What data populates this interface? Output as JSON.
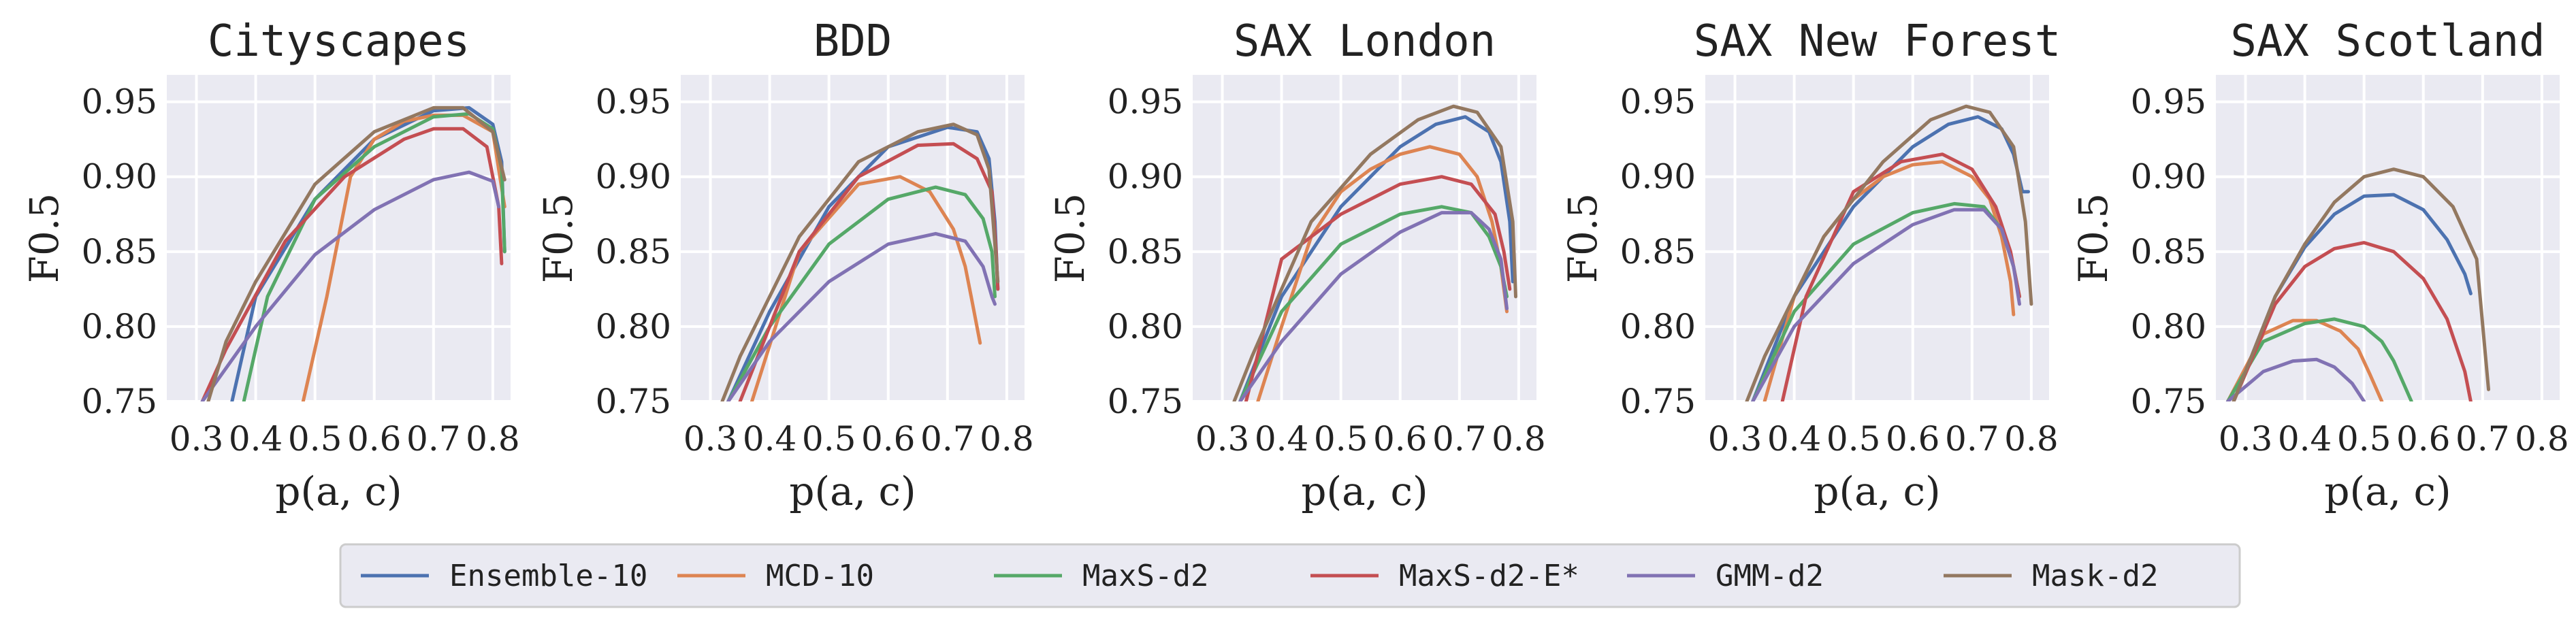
{
  "colors": {
    "plot_bg": "#EAEAF2",
    "grid": "#FFFFFF",
    "Ensemble-10": "#4C72B0",
    "MCD-10": "#DD8452",
    "MaxS-d2": "#55A868",
    "MaxS-d2-E*": "#C44E52",
    "GMM-d2": "#8172B3",
    "Mask-d2": "#937860"
  },
  "legend": {
    "placement": "bottom-center",
    "entries": [
      "Ensemble-10",
      "MCD-10",
      "MaxS-d2",
      "MaxS-d2-E*",
      "GMM-d2",
      "Mask-d2"
    ]
  },
  "chart_data": [
    {
      "type": "line",
      "title": "Cityscapes",
      "xlabel": "p(a, c)",
      "ylabel": "F0.5",
      "xlim": [
        0.25,
        0.83
      ],
      "ylim": [
        0.75,
        0.968
      ],
      "xticks": [
        "0.3",
        "0.4",
        "0.5",
        "0.6",
        "0.7",
        "0.8"
      ],
      "yticks": [
        "0.75",
        "0.80",
        "0.85",
        "0.90",
        "0.95"
      ],
      "grid": true,
      "series": [
        {
          "name": "Ensemble-10",
          "x": [
            0.36,
            0.4,
            0.5,
            0.6,
            0.7,
            0.76,
            0.8,
            0.815,
            0.82
          ],
          "y": [
            0.75,
            0.82,
            0.885,
            0.925,
            0.944,
            0.946,
            0.935,
            0.91,
            0.85
          ]
        },
        {
          "name": "MCD-10",
          "x": [
            0.48,
            0.52,
            0.56,
            0.6,
            0.65,
            0.7,
            0.75,
            0.8,
            0.82
          ],
          "y": [
            0.75,
            0.82,
            0.9,
            0.925,
            0.937,
            0.941,
            0.941,
            0.93,
            0.88
          ]
        },
        {
          "name": "MaxS-d2",
          "x": [
            0.38,
            0.42,
            0.5,
            0.6,
            0.7,
            0.76,
            0.8,
            0.815,
            0.82
          ],
          "y": [
            0.75,
            0.82,
            0.885,
            0.92,
            0.94,
            0.942,
            0.932,
            0.905,
            0.85
          ]
        },
        {
          "name": "MaxS-d2-E*",
          "x": [
            0.31,
            0.35,
            0.45,
            0.55,
            0.65,
            0.7,
            0.75,
            0.79,
            0.81,
            0.815
          ],
          "y": [
            0.75,
            0.785,
            0.857,
            0.9,
            0.925,
            0.932,
            0.932,
            0.92,
            0.88,
            0.842
          ]
        },
        {
          "name": "GMM-d2",
          "x": [
            0.31,
            0.4,
            0.5,
            0.6,
            0.7,
            0.76,
            0.8,
            0.81
          ],
          "y": [
            0.75,
            0.8,
            0.848,
            0.878,
            0.898,
            0.903,
            0.897,
            0.88
          ]
        },
        {
          "name": "Mask-d2",
          "x": [
            0.32,
            0.35,
            0.4,
            0.5,
            0.6,
            0.7,
            0.75,
            0.8,
            0.82
          ],
          "y": [
            0.75,
            0.79,
            0.83,
            0.895,
            0.93,
            0.946,
            0.946,
            0.93,
            0.898
          ]
        }
      ]
    },
    {
      "type": "line",
      "title": "BDD",
      "xlabel": "p(a, c)",
      "ylabel": "F0.5",
      "xlim": [
        0.25,
        0.83
      ],
      "ylim": [
        0.75,
        0.968
      ],
      "xticks": [
        "0.3",
        "0.4",
        "0.5",
        "0.6",
        "0.7",
        "0.8"
      ],
      "yticks": [
        "0.75",
        "0.80",
        "0.85",
        "0.90",
        "0.95"
      ],
      "grid": true,
      "series": [
        {
          "name": "Ensemble-10",
          "x": [
            0.33,
            0.4,
            0.5,
            0.6,
            0.7,
            0.75,
            0.77,
            0.78,
            0.785
          ],
          "y": [
            0.75,
            0.81,
            0.88,
            0.92,
            0.933,
            0.93,
            0.912,
            0.87,
            0.825
          ]
        },
        {
          "name": "MCD-10",
          "x": [
            0.37,
            0.45,
            0.55,
            0.62,
            0.67,
            0.71,
            0.73,
            0.74,
            0.755
          ],
          "y": [
            0.75,
            0.85,
            0.895,
            0.9,
            0.89,
            0.865,
            0.84,
            0.82,
            0.789
          ]
        },
        {
          "name": "MaxS-d2",
          "x": [
            0.33,
            0.4,
            0.5,
            0.6,
            0.68,
            0.73,
            0.76,
            0.775,
            0.78
          ],
          "y": [
            0.75,
            0.8,
            0.855,
            0.885,
            0.893,
            0.888,
            0.872,
            0.85,
            0.82
          ]
        },
        {
          "name": "MaxS-d2-E*",
          "x": [
            0.35,
            0.45,
            0.55,
            0.65,
            0.71,
            0.75,
            0.775,
            0.782,
            0.785
          ],
          "y": [
            0.75,
            0.85,
            0.9,
            0.921,
            0.922,
            0.912,
            0.89,
            0.85,
            0.825
          ]
        },
        {
          "name": "GMM-d2",
          "x": [
            0.33,
            0.4,
            0.5,
            0.6,
            0.68,
            0.73,
            0.76,
            0.775,
            0.78
          ],
          "y": [
            0.75,
            0.79,
            0.83,
            0.855,
            0.862,
            0.857,
            0.84,
            0.82,
            0.815
          ]
        },
        {
          "name": "Mask-d2",
          "x": [
            0.32,
            0.35,
            0.45,
            0.55,
            0.65,
            0.71,
            0.75,
            0.77,
            0.785
          ],
          "y": [
            0.75,
            0.78,
            0.86,
            0.91,
            0.93,
            0.935,
            0.928,
            0.905,
            0.83
          ]
        }
      ]
    },
    {
      "type": "line",
      "title": "SAX London",
      "xlabel": "p(a, c)",
      "ylabel": "F0.5",
      "xlim": [
        0.25,
        0.83
      ],
      "ylim": [
        0.75,
        0.968
      ],
      "xticks": [
        "0.3",
        "0.4",
        "0.5",
        "0.6",
        "0.7",
        "0.8"
      ],
      "yticks": [
        "0.75",
        "0.80",
        "0.85",
        "0.90",
        "0.95"
      ],
      "grid": true,
      "series": [
        {
          "name": "Ensemble-10",
          "x": [
            0.33,
            0.4,
            0.5,
            0.6,
            0.66,
            0.71,
            0.75,
            0.77,
            0.785,
            0.79
          ],
          "y": [
            0.75,
            0.82,
            0.88,
            0.92,
            0.935,
            0.94,
            0.93,
            0.91,
            0.87,
            0.83
          ]
        },
        {
          "name": "MCD-10",
          "x": [
            0.36,
            0.4,
            0.45,
            0.5,
            0.55,
            0.6,
            0.65,
            0.7,
            0.73,
            0.755,
            0.77,
            0.78
          ],
          "y": [
            0.75,
            0.8,
            0.86,
            0.89,
            0.905,
            0.915,
            0.92,
            0.915,
            0.9,
            0.87,
            0.84,
            0.81
          ]
        },
        {
          "name": "MaxS-d2",
          "x": [
            0.33,
            0.4,
            0.5,
            0.6,
            0.67,
            0.72,
            0.75,
            0.77,
            0.78
          ],
          "y": [
            0.75,
            0.81,
            0.855,
            0.875,
            0.88,
            0.876,
            0.86,
            0.84,
            0.82
          ]
        },
        {
          "name": "MaxS-d2-E*",
          "x": [
            0.34,
            0.4,
            0.5,
            0.6,
            0.67,
            0.72,
            0.76,
            0.775,
            0.785
          ],
          "y": [
            0.75,
            0.845,
            0.875,
            0.895,
            0.9,
            0.895,
            0.875,
            0.85,
            0.825
          ]
        },
        {
          "name": "GMM-d2",
          "x": [
            0.33,
            0.4,
            0.5,
            0.6,
            0.67,
            0.72,
            0.75,
            0.77,
            0.78
          ],
          "y": [
            0.75,
            0.79,
            0.835,
            0.863,
            0.876,
            0.876,
            0.865,
            0.845,
            0.812
          ]
        },
        {
          "name": "Mask-d2",
          "x": [
            0.32,
            0.35,
            0.45,
            0.55,
            0.63,
            0.69,
            0.73,
            0.77,
            0.79,
            0.795
          ],
          "y": [
            0.75,
            0.78,
            0.87,
            0.915,
            0.938,
            0.947,
            0.943,
            0.92,
            0.87,
            0.82
          ]
        }
      ]
    },
    {
      "type": "line",
      "title": "SAX New Forest",
      "xlabel": "p(a, c)",
      "ylabel": "F0.5",
      "xlim": [
        0.25,
        0.83
      ],
      "ylim": [
        0.75,
        0.968
      ],
      "xticks": [
        "0.3",
        "0.4",
        "0.5",
        "0.6",
        "0.7",
        "0.8"
      ],
      "yticks": [
        "0.75",
        "0.80",
        "0.85",
        "0.90",
        "0.95"
      ],
      "grid": true,
      "series": [
        {
          "name": "Ensemble-10",
          "x": [
            0.33,
            0.4,
            0.5,
            0.6,
            0.66,
            0.71,
            0.75,
            0.77,
            0.785,
            0.795
          ],
          "y": [
            0.75,
            0.82,
            0.88,
            0.92,
            0.935,
            0.94,
            0.932,
            0.915,
            0.89,
            0.89
          ]
        },
        {
          "name": "MCD-10",
          "x": [
            0.35,
            0.4,
            0.45,
            0.5,
            0.55,
            0.6,
            0.65,
            0.7,
            0.73,
            0.75,
            0.765,
            0.77
          ],
          "y": [
            0.75,
            0.82,
            0.86,
            0.885,
            0.9,
            0.908,
            0.91,
            0.9,
            0.885,
            0.86,
            0.83,
            0.808
          ]
        },
        {
          "name": "MaxS-d2",
          "x": [
            0.33,
            0.4,
            0.5,
            0.6,
            0.67,
            0.72,
            0.75,
            0.77,
            0.78
          ],
          "y": [
            0.75,
            0.81,
            0.855,
            0.876,
            0.882,
            0.88,
            0.865,
            0.84,
            0.82
          ]
        },
        {
          "name": "MaxS-d2-E*",
          "x": [
            0.38,
            0.42,
            0.5,
            0.58,
            0.65,
            0.7,
            0.74,
            0.765,
            0.78
          ],
          "y": [
            0.75,
            0.82,
            0.89,
            0.91,
            0.915,
            0.905,
            0.88,
            0.85,
            0.82
          ]
        },
        {
          "name": "GMM-d2",
          "x": [
            0.33,
            0.4,
            0.5,
            0.6,
            0.67,
            0.72,
            0.75,
            0.77,
            0.78
          ],
          "y": [
            0.75,
            0.8,
            0.842,
            0.868,
            0.878,
            0.878,
            0.865,
            0.84,
            0.815
          ]
        },
        {
          "name": "Mask-d2",
          "x": [
            0.32,
            0.35,
            0.45,
            0.55,
            0.63,
            0.69,
            0.73,
            0.77,
            0.79,
            0.8
          ],
          "y": [
            0.75,
            0.78,
            0.86,
            0.91,
            0.938,
            0.947,
            0.943,
            0.92,
            0.87,
            0.815
          ]
        }
      ]
    },
    {
      "type": "line",
      "title": "SAX Scotland",
      "xlabel": "p(a, c)",
      "ylabel": "F0.5",
      "xlim": [
        0.25,
        0.83
      ],
      "ylim": [
        0.75,
        0.968
      ],
      "xticks": [
        "0.3",
        "0.4",
        "0.5",
        "0.6",
        "0.7",
        "0.8"
      ],
      "yticks": [
        "0.75",
        "0.80",
        "0.85",
        "0.90",
        "0.95"
      ],
      "grid": true,
      "series": [
        {
          "name": "Ensemble-10",
          "x": [
            0.28,
            0.35,
            0.4,
            0.45,
            0.5,
            0.55,
            0.6,
            0.64,
            0.67,
            0.68
          ],
          "y": [
            0.75,
            0.82,
            0.853,
            0.875,
            0.887,
            0.888,
            0.878,
            0.858,
            0.835,
            0.822
          ]
        },
        {
          "name": "MCD-10",
          "x": [
            0.27,
            0.33,
            0.38,
            0.42,
            0.46,
            0.49,
            0.51,
            0.53
          ],
          "y": [
            0.75,
            0.795,
            0.804,
            0.804,
            0.797,
            0.785,
            0.768,
            0.75
          ]
        },
        {
          "name": "MaxS-d2",
          "x": [
            0.27,
            0.33,
            0.4,
            0.45,
            0.5,
            0.53,
            0.55,
            0.58
          ],
          "y": [
            0.75,
            0.79,
            0.802,
            0.805,
            0.8,
            0.79,
            0.777,
            0.75
          ]
        },
        {
          "name": "MaxS-d2-E*",
          "x": [
            0.28,
            0.35,
            0.4,
            0.45,
            0.5,
            0.55,
            0.6,
            0.64,
            0.67,
            0.68
          ],
          "y": [
            0.75,
            0.815,
            0.84,
            0.852,
            0.856,
            0.85,
            0.832,
            0.805,
            0.77,
            0.75
          ]
        },
        {
          "name": "GMM-d2",
          "x": [
            0.27,
            0.33,
            0.38,
            0.42,
            0.45,
            0.48,
            0.5
          ],
          "y": [
            0.75,
            0.77,
            0.777,
            0.778,
            0.773,
            0.762,
            0.75
          ]
        },
        {
          "name": "Mask-d2",
          "x": [
            0.28,
            0.35,
            0.4,
            0.45,
            0.5,
            0.55,
            0.6,
            0.65,
            0.69,
            0.71
          ],
          "y": [
            0.75,
            0.82,
            0.855,
            0.883,
            0.9,
            0.905,
            0.9,
            0.88,
            0.845,
            0.758
          ]
        }
      ]
    }
  ]
}
